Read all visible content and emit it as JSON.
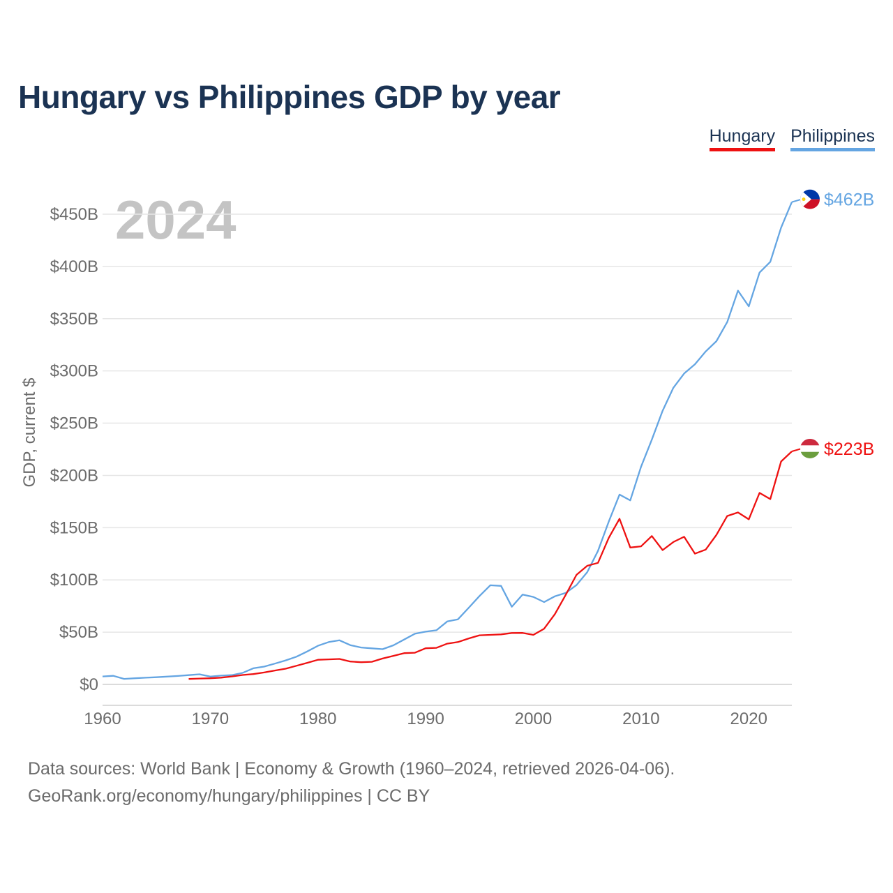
{
  "header": {
    "title": "Hungary vs Philippines GDP by year",
    "year_watermark": "2024"
  },
  "legend": [
    {
      "label": "Hungary",
      "color": "#ee1111"
    },
    {
      "label": "Philippines",
      "color": "#64a5e2"
    }
  ],
  "footer": {
    "line1": "Data sources: World Bank | Economy & Growth (1960–2024, retrieved 2026-04-06).",
    "line2": "GeoRank.org/economy/hungary/philippines | CC BY"
  },
  "chart_data": {
    "type": "line",
    "title": "Hungary vs Philippines GDP by year",
    "xlabel": "",
    "ylabel": "GDP, current $",
    "xlim": [
      1960,
      2024
    ],
    "ylim": [
      0,
      450
    ],
    "x_ticks": [
      1960,
      1970,
      1980,
      1990,
      2000,
      2010,
      2020
    ],
    "x_tick_labels": [
      "1960",
      "1970",
      "1980",
      "1990",
      "2000",
      "2010",
      "2020"
    ],
    "y_ticks": [
      0,
      50,
      100,
      150,
      200,
      250,
      300,
      350,
      400,
      450
    ],
    "y_tick_labels": [
      "$0",
      "$50B",
      "$100B",
      "$150B",
      "$200B",
      "$250B",
      "$300B",
      "$350B",
      "$400B",
      "$450B"
    ],
    "grid": true,
    "series": [
      {
        "name": "Philippines",
        "color": "#64a5e2",
        "end_label": "$462B",
        "flag": "philippines-flag",
        "x": [
          1960,
          1961,
          1962,
          1963,
          1964,
          1965,
          1966,
          1967,
          1968,
          1969,
          1970,
          1971,
          1972,
          1973,
          1974,
          1975,
          1976,
          1977,
          1978,
          1979,
          1980,
          1981,
          1982,
          1983,
          1984,
          1985,
          1986,
          1987,
          1988,
          1989,
          1990,
          1991,
          1992,
          1993,
          1994,
          1995,
          1996,
          1997,
          1998,
          1999,
          2000,
          2001,
          2002,
          2003,
          2004,
          2005,
          2006,
          2007,
          2008,
          2009,
          2010,
          2011,
          2012,
          2013,
          2014,
          2015,
          2016,
          2017,
          2018,
          2019,
          2020,
          2021,
          2022,
          2023,
          2024
        ],
        "values": [
          7.6,
          8.2,
          5.3,
          5.9,
          6.4,
          6.9,
          7.5,
          8.1,
          8.9,
          9.7,
          7.5,
          8.4,
          8.9,
          11.0,
          15.4,
          17.0,
          19.9,
          23.0,
          26.5,
          31.5,
          37.0,
          40.5,
          42.2,
          37.6,
          35.3,
          34.5,
          33.7,
          37.4,
          42.9,
          48.5,
          50.5,
          51.8,
          60.2,
          62.3,
          73.4,
          84.6,
          94.9,
          94.3,
          74.3,
          86.0,
          83.7,
          78.8,
          84.3,
          87.5,
          95.0,
          107.4,
          127.7,
          155.8,
          181.7,
          176.1,
          208.4,
          234.2,
          261.9,
          283.9,
          297.5,
          306.4,
          318.6,
          328.5,
          346.8,
          376.8,
          361.8,
          394.1,
          404.4,
          437.1,
          461.6
        ]
      },
      {
        "name": "Hungary",
        "color": "#ee1111",
        "end_label": "$223B",
        "flag": "hungary-flag",
        "x": [
          1968,
          1969,
          1970,
          1971,
          1972,
          1973,
          1974,
          1975,
          1976,
          1977,
          1978,
          1979,
          1980,
          1981,
          1982,
          1983,
          1984,
          1985,
          1986,
          1987,
          1988,
          1989,
          1990,
          1991,
          1992,
          1993,
          1994,
          1995,
          1996,
          1997,
          1998,
          1999,
          2000,
          2001,
          2002,
          2003,
          2004,
          2005,
          2006,
          2007,
          2008,
          2009,
          2010,
          2011,
          2012,
          2013,
          2014,
          2015,
          2016,
          2017,
          2018,
          2019,
          2020,
          2021,
          2022,
          2023,
          2024
        ],
        "values": [
          5.2,
          5.6,
          5.9,
          6.5,
          7.6,
          9.0,
          9.9,
          11.4,
          13.3,
          15.0,
          17.8,
          20.6,
          23.6,
          24.0,
          24.4,
          21.9,
          21.2,
          21.6,
          24.8,
          27.3,
          29.9,
          30.3,
          34.6,
          35.0,
          39.0,
          40.5,
          44.0,
          47.0,
          47.4,
          47.9,
          49.2,
          49.3,
          47.4,
          53.3,
          67.3,
          85.6,
          104.8,
          113.5,
          116.3,
          140.3,
          158.5,
          131.0,
          132.1,
          142.0,
          128.5,
          136.3,
          141.3,
          125.1,
          129.0,
          143.1,
          161.2,
          164.6,
          158.0,
          183.3,
          177.3,
          213.3,
          223.0
        ]
      }
    ]
  }
}
